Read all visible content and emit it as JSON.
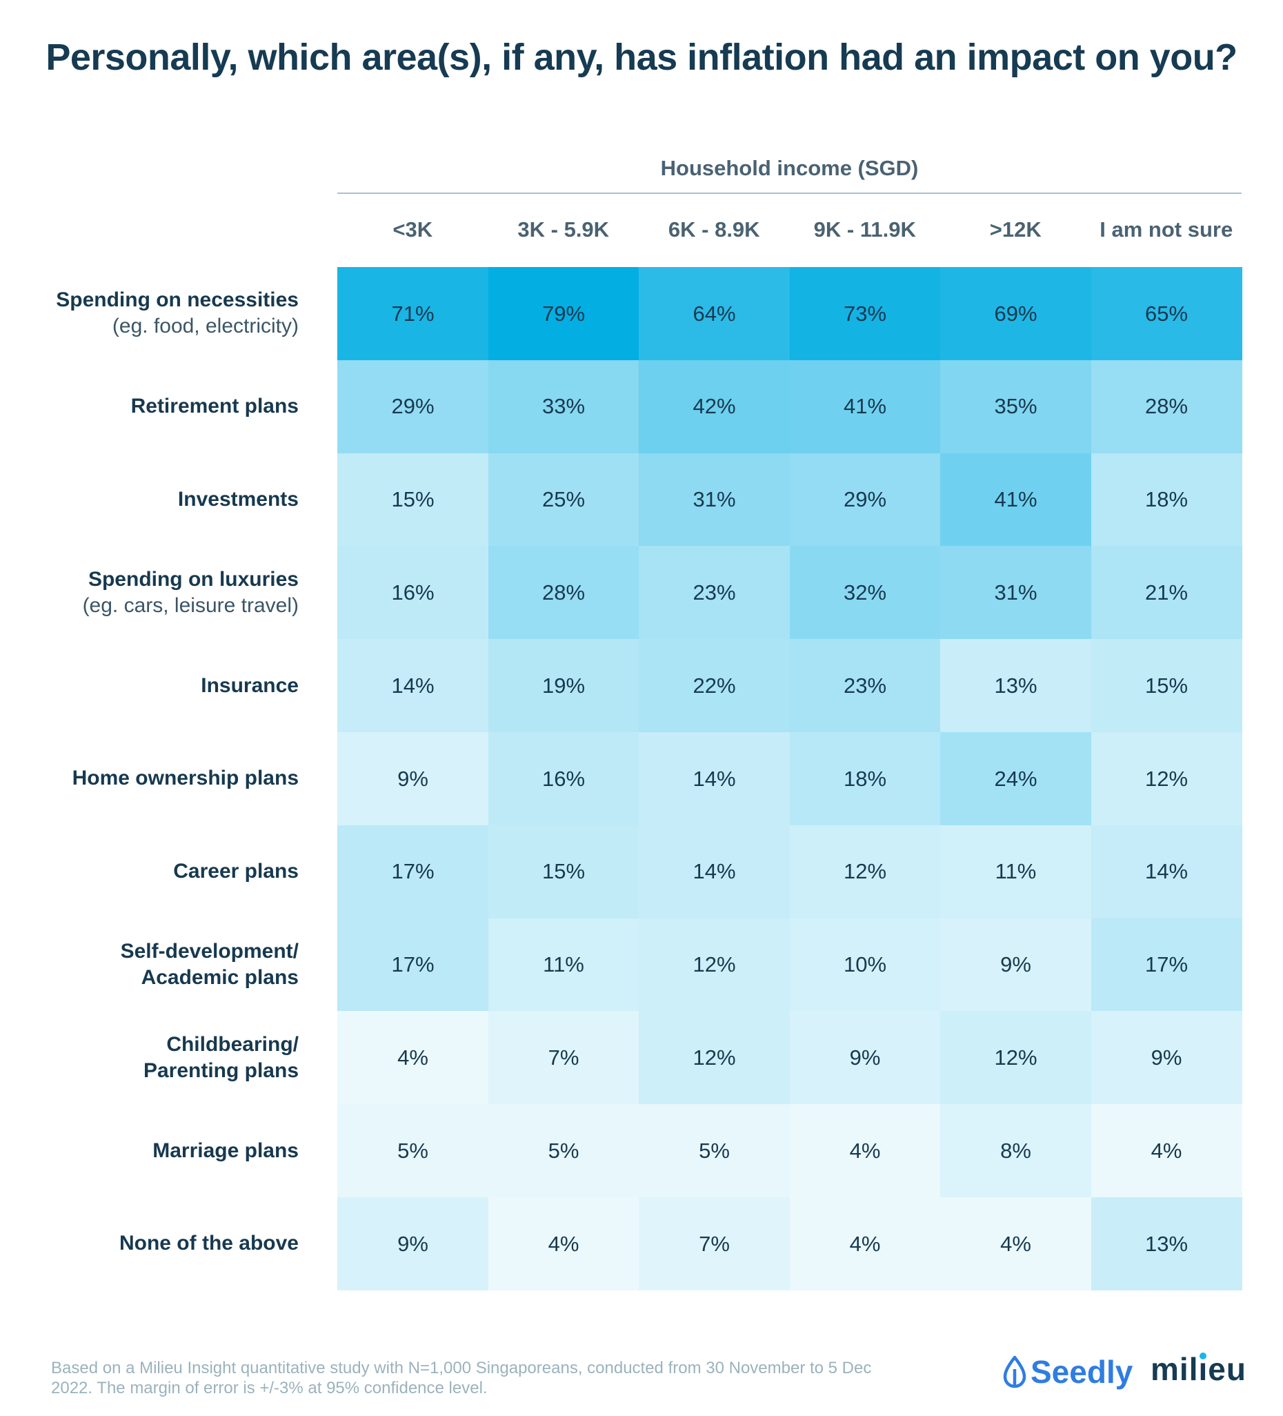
{
  "title": "Personally, which area(s), if any, has inflation had an impact on you?",
  "chart_data": {
    "type": "heatmap",
    "title": "Personally, which area(s), if any, has inflation had an impact on you?",
    "column_group_label": "Household income (SGD)",
    "columns": [
      "<3K",
      "3K - 5.9K",
      "6K - 8.9K",
      "9K - 11.9K",
      ">12K",
      "I am not sure"
    ],
    "rows": [
      {
        "label": "Spending on necessities",
        "sublabel": "(eg. food, electricity)",
        "values": [
          71,
          79,
          64,
          73,
          69,
          65
        ]
      },
      {
        "label": "Retirement plans",
        "sublabel": "",
        "values": [
          29,
          33,
          42,
          41,
          35,
          28
        ]
      },
      {
        "label": "Investments",
        "sublabel": "",
        "values": [
          15,
          25,
          31,
          29,
          41,
          18
        ]
      },
      {
        "label": "Spending on luxuries",
        "sublabel": "(eg. cars, leisure travel)",
        "values": [
          16,
          28,
          23,
          32,
          31,
          21
        ]
      },
      {
        "label": "Insurance",
        "sublabel": "",
        "values": [
          14,
          19,
          22,
          23,
          13,
          15
        ]
      },
      {
        "label": "Home ownership plans",
        "sublabel": "",
        "values": [
          9,
          16,
          14,
          18,
          24,
          12
        ]
      },
      {
        "label": "Career plans",
        "sublabel": "",
        "values": [
          17,
          15,
          14,
          12,
          11,
          14
        ]
      },
      {
        "label": "Self-development/ Academic plans",
        "sublabel": "",
        "values": [
          17,
          11,
          12,
          10,
          9,
          17
        ]
      },
      {
        "label": "Childbearing/ Parenting plans",
        "sublabel": "",
        "values": [
          4,
          7,
          12,
          9,
          12,
          9
        ]
      },
      {
        "label": "Marriage plans",
        "sublabel": "",
        "values": [
          5,
          5,
          5,
          4,
          8,
          4
        ]
      },
      {
        "label": "None of the above",
        "sublabel": "",
        "values": [
          9,
          4,
          7,
          4,
          4,
          13
        ]
      }
    ],
    "value_suffix": "%",
    "color_scale": {
      "low": "#ffffff",
      "high": "#00ade2"
    },
    "value_range": [
      0,
      80
    ]
  },
  "footer": {
    "note": "Based on a Milieu Insight quantitative study with N=1,000 Singaporeans, conducted from 30 November to 5 Dec 2022. The margin of error is +/-3% at 95% confidence level.",
    "logos": [
      {
        "name": "Seedly",
        "icon": "seed-leaf-icon",
        "color": "#2f7de1"
      },
      {
        "name": "milieu",
        "color": "#163b52",
        "accent": "#19b7e6"
      }
    ]
  }
}
